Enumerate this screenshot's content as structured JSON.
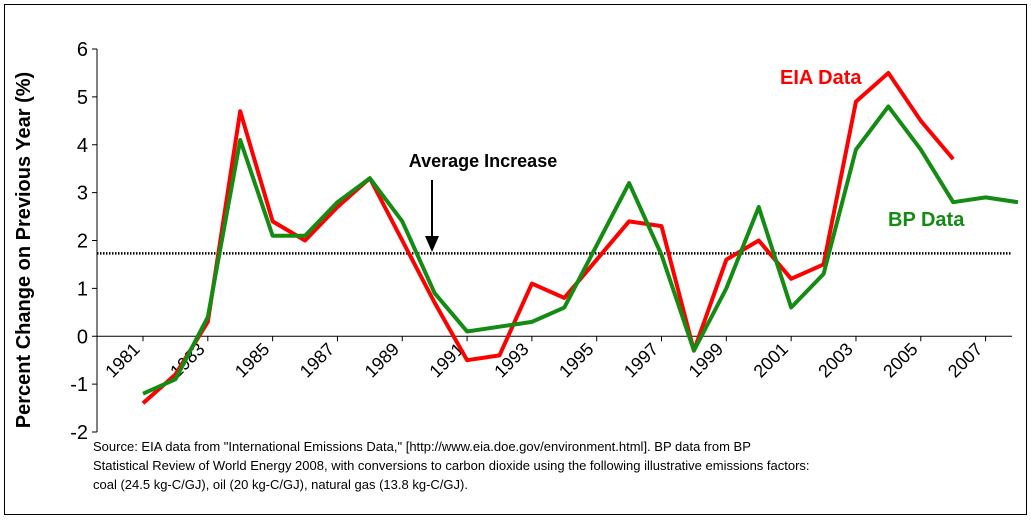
{
  "chart_data": {
    "type": "line",
    "y_label": "Percent Change on Previous Year (%)",
    "x": [
      1981,
      1982,
      1983,
      1984,
      1985,
      1986,
      1987,
      1988,
      1989,
      1990,
      1991,
      1992,
      1993,
      1994,
      1995,
      1996,
      1997,
      1998,
      1999,
      2000,
      2001,
      2002,
      2003,
      2004,
      2005,
      2006,
      2007,
      2008
    ],
    "series": [
      {
        "name": "EIA Data",
        "color": "#ff0000",
        "values": [
          -1.4,
          -0.8,
          0.3,
          4.7,
          2.4,
          2.0,
          2.7,
          3.3,
          2.0,
          0.7,
          -0.5,
          -0.4,
          1.1,
          0.8,
          1.6,
          2.4,
          2.3,
          -0.3,
          1.6,
          2.0,
          1.2,
          1.5,
          4.9,
          5.5,
          4.5,
          3.7,
          null,
          null
        ]
      },
      {
        "name": "BP Data",
        "color": "#148c14",
        "values": [
          -1.2,
          -0.9,
          0.4,
          4.1,
          2.1,
          2.1,
          2.8,
          3.3,
          2.4,
          0.9,
          0.1,
          0.2,
          0.3,
          0.6,
          1.9,
          3.2,
          1.7,
          -0.3,
          1.0,
          2.7,
          0.6,
          1.3,
          3.9,
          4.8,
          3.9,
          2.8,
          2.9,
          2.8
        ]
      }
    ],
    "xlim": [
      1981,
      2008
    ],
    "xticks": [
      1981,
      1983,
      1985,
      1987,
      1989,
      1991,
      1993,
      1995,
      1997,
      1999,
      2001,
      2003,
      2005,
      2007
    ],
    "ylim": [
      -2,
      6
    ],
    "yticks": [
      -2,
      -1,
      0,
      1,
      2,
      3,
      4,
      5,
      6
    ],
    "grid": false,
    "average": {
      "value": 1.73,
      "label": "Average Increase"
    },
    "source": [
      "Source: EIA data from \"International Emissions Data,\" [http://www.eia.doe.gov/environment.html].  BP data from BP",
      "Statistical Review of World Energy 2008, with conversions to carbon dioxide using the following illustrative emissions factors:",
      "coal (24.5 kg-C/GJ), oil (20 kg-C/GJ), natural gas (13.8 kg-C/GJ)."
    ]
  }
}
